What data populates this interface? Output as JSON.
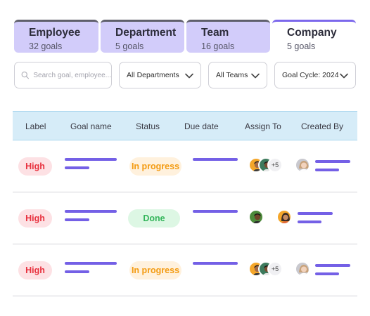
{
  "tabs": [
    {
      "title": "Employee",
      "sub": "32 goals"
    },
    {
      "title": "Department",
      "sub": "5 goals"
    },
    {
      "title": "Team",
      "sub": "16 goals"
    },
    {
      "title": "Company",
      "sub": "5 goals"
    }
  ],
  "filters": {
    "search_placeholder": "Search goal, employee...",
    "department": "All Departments",
    "team": "All Teams",
    "cycle": "Goal Cycle: 2024"
  },
  "table": {
    "headers": [
      "Label",
      "Goal name",
      "Status",
      "Due date",
      "Assign To",
      "Created By"
    ],
    "rows": [
      {
        "label": "High",
        "status": "In progress",
        "extra": "+5"
      },
      {
        "label": "High",
        "status": "Done",
        "extra": ""
      },
      {
        "label": "High",
        "status": "In progress",
        "extra": "+5"
      }
    ]
  },
  "colors": {
    "accent": "#7460e6",
    "tab_inactive": "#d2ccfa",
    "header_bg": "#d6ecf8",
    "high": "#e8313e",
    "in_progress": "#f39b12",
    "done": "#33b55a"
  }
}
